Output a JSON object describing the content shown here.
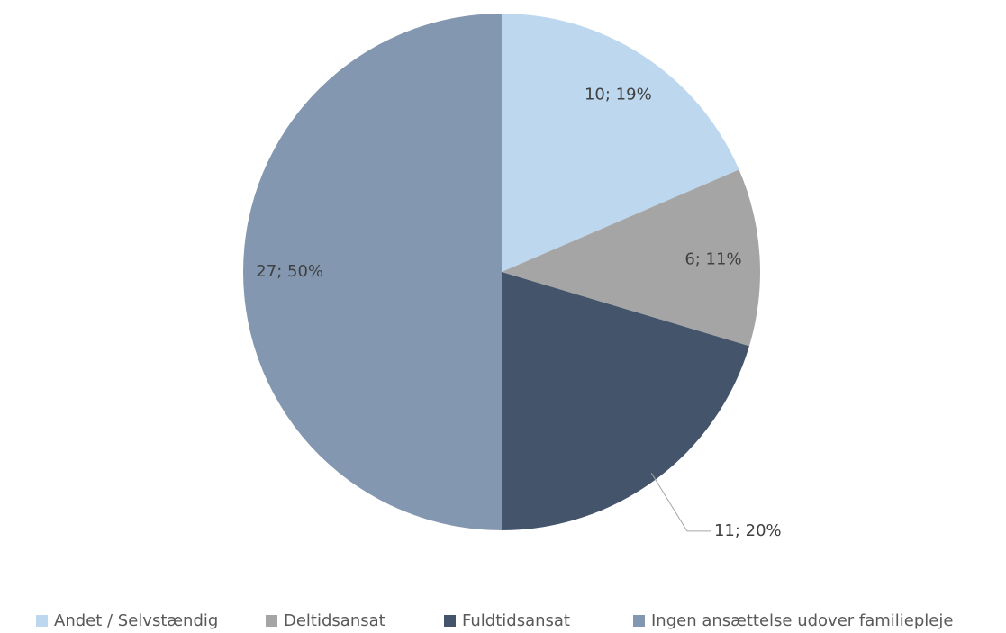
{
  "chart_data": {
    "type": "pie",
    "categories": [
      "Andet / Selvstændig",
      "Deltidsansat",
      "Fuldtidsansat",
      "Ingen ansættelse udover familiepleje"
    ],
    "values": [
      10,
      6,
      11,
      27
    ],
    "value_labels": [
      "10; 19%",
      "6; 11%",
      "11; 20%",
      "27; 50%"
    ],
    "colors": [
      "#bdd7ee",
      "#a5a5a5",
      "#44546a",
      "#8497b0"
    ],
    "legend": "bottom"
  }
}
